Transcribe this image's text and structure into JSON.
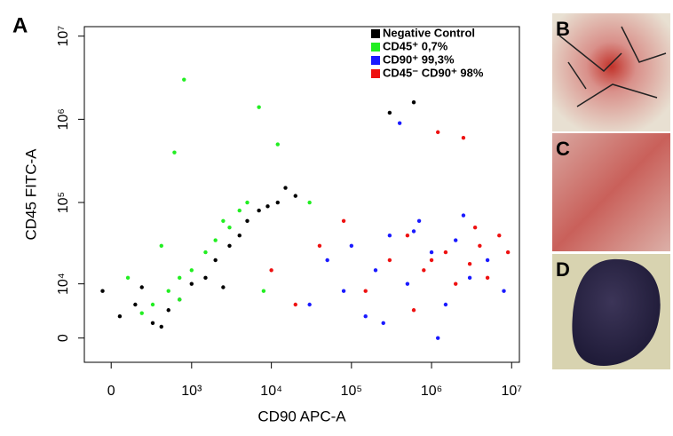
{
  "panels": {
    "a": "A",
    "b": "B",
    "c": "C",
    "d": "D"
  },
  "chart_data": {
    "type": "scatter",
    "x_label": "CD90 APC-A",
    "y_label": "CD45 FITC-A",
    "xscale": "biexponential",
    "yscale": "biexponential",
    "xlim": [
      -170,
      12500000
    ],
    "ylim": [
      -3400,
      13000000
    ],
    "xticks": [
      0,
      {
        "value": 1000,
        "label": "10³"
      },
      {
        "value": 10000,
        "label": "10⁴"
      },
      {
        "value": 100000,
        "label": "10⁵"
      },
      {
        "value": 1000000,
        "label": "10⁶"
      },
      {
        "value": 10000000,
        "label": "10⁷"
      }
    ],
    "yticks": [
      0,
      {
        "value": 10000,
        "label": "10⁴"
      },
      {
        "value": 100000,
        "label": "10⁵"
      },
      {
        "value": 1000000,
        "label": "10⁶"
      },
      {
        "value": 10000000,
        "label": "10⁷"
      }
    ],
    "legend": "upper right",
    "series": [
      {
        "name": "Negative Control",
        "color": "#000000",
        "x": [
          -50,
          50,
          150,
          300,
          500,
          700,
          1000,
          1500,
          2000,
          3000,
          4000,
          5000,
          7000,
          9000,
          12000,
          15000,
          20000,
          300000,
          600000,
          200,
          400,
          2500
        ],
        "values": [
          8000,
          3000,
          5000,
          2000,
          4000,
          6000,
          10000,
          12000,
          20000,
          30000,
          40000,
          60000,
          80000,
          90000,
          100000,
          150000,
          120000,
          1200000,
          1600000,
          9000,
          1500,
          9000
        ]
      },
      {
        "name": "CD45⁺ 0,7%",
        "color": "#22ee22",
        "x": [
          300,
          500,
          700,
          1000,
          1500,
          2000,
          3000,
          4000,
          5000,
          800,
          600,
          400,
          7000,
          2500,
          700,
          12000,
          30000,
          200,
          8000,
          100
        ],
        "values": [
          5000,
          8000,
          12000,
          15000,
          25000,
          35000,
          50000,
          80000,
          100000,
          3000000,
          400000,
          30000,
          1400000,
          60000,
          6000,
          500000,
          100000,
          3500,
          8000,
          12000
        ]
      },
      {
        "name": "CD90⁺ 99,3%",
        "color": "#1a1aff",
        "x": [
          30000,
          50000,
          80000,
          100000,
          150000,
          200000,
          300000,
          500000,
          700000,
          1000000,
          1500000,
          2000000,
          3000000,
          5000000,
          8000000,
          400000,
          250000,
          600000,
          2500000,
          1200000
        ],
        "values": [
          5000,
          20000,
          8000,
          30000,
          3000,
          15000,
          40000,
          10000,
          60000,
          25000,
          5000,
          35000,
          12000,
          20000,
          8000,
          900000,
          2000,
          45000,
          70000,
          0
        ]
      },
      {
        "name": "CD45⁻ CD90⁺ 98%",
        "color": "#ee1111",
        "x": [
          10000,
          20000,
          40000,
          80000,
          150000,
          300000,
          500000,
          800000,
          1000000,
          1500000,
          2000000,
          3000000,
          4000000,
          5000000,
          7000000,
          1200000,
          2500000,
          600000,
          3500000,
          9000000
        ],
        "values": [
          15000,
          5000,
          30000,
          60000,
          8000,
          20000,
          40000,
          15000,
          20000,
          25000,
          10000,
          18000,
          30000,
          12000,
          40000,
          700000,
          600000,
          4000,
          50000,
          25000
        ]
      }
    ]
  }
}
